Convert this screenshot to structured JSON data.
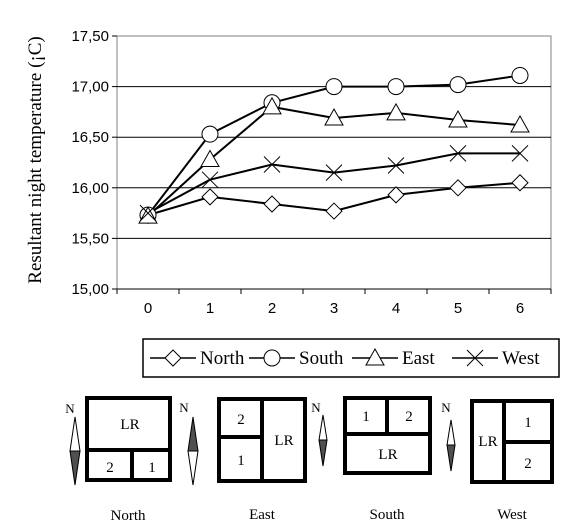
{
  "chart_data": {
    "type": "line",
    "title": "",
    "xlabel": "",
    "ylabel": "Resultant night temperature (¡C)",
    "x": [
      0,
      1,
      2,
      3,
      4,
      5,
      6
    ],
    "x_tick_labels": [
      "0",
      "1",
      "2",
      "3",
      "4",
      "5",
      "6"
    ],
    "ylim": [
      15.0,
      17.5
    ],
    "y_ticks": [
      15.0,
      15.5,
      16.0,
      16.5,
      17.0,
      17.5
    ],
    "y_tick_labels": [
      "15,00",
      "15,50",
      "16,00",
      "16,50",
      "17,00",
      "17,50"
    ],
    "grid": "horizontal",
    "legend_position": "bottom",
    "series": [
      {
        "name": "North",
        "marker": "diamond",
        "values": [
          15.73,
          15.91,
          15.84,
          15.77,
          15.93,
          16.0,
          16.05
        ]
      },
      {
        "name": "South",
        "marker": "circle",
        "values": [
          15.73,
          16.53,
          16.84,
          17.0,
          17.0,
          17.02,
          17.11
        ]
      },
      {
        "name": "East",
        "marker": "triangle",
        "values": [
          15.72,
          16.28,
          16.8,
          16.69,
          16.74,
          16.67,
          16.62
        ]
      },
      {
        "name": "West",
        "marker": "x",
        "values": [
          15.75,
          16.08,
          16.23,
          16.15,
          16.22,
          16.34,
          16.34
        ]
      }
    ]
  },
  "plans": [
    {
      "caption": "North",
      "rooms": [
        "LR",
        "2",
        "1"
      ],
      "north_labels": [
        "N",
        "N"
      ]
    },
    {
      "caption": "East",
      "rooms": [
        "2",
        "1",
        "LR"
      ],
      "north_labels": [
        "N"
      ]
    },
    {
      "caption": "South",
      "rooms": [
        "1",
        "2",
        "LR"
      ],
      "north_labels": [
        "N"
      ]
    },
    {
      "caption": "West",
      "rooms": [
        "LR",
        "1",
        "2"
      ],
      "north_labels": []
    }
  ]
}
